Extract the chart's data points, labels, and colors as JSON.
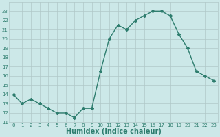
{
  "x": [
    0,
    1,
    2,
    3,
    4,
    5,
    6,
    7,
    8,
    9,
    10,
    11,
    12,
    13,
    14,
    15,
    16,
    17,
    18,
    19,
    20,
    21,
    22,
    23
  ],
  "y": [
    14,
    13,
    13.5,
    13,
    12.5,
    12,
    12,
    11.5,
    12.5,
    12.5,
    16.5,
    20,
    21.5,
    21,
    22,
    22.5,
    23,
    23,
    22.5,
    20.5,
    19,
    16.5,
    16,
    15.5
  ],
  "line_color": "#2e7d6e",
  "marker": "D",
  "marker_size": 2,
  "bg_color": "#cce8e8",
  "grid_color": "#b0c8c8",
  "xlabel": "Humidex (Indice chaleur)",
  "xlabel_fontsize": 7,
  "tick_label_color": "#2e7d6e",
  "ylim": [
    11,
    24
  ],
  "xlim": [
    -0.5,
    23.5
  ],
  "yticks": [
    11,
    12,
    13,
    14,
    15,
    16,
    17,
    18,
    19,
    20,
    21,
    22,
    23
  ],
  "xticks": [
    0,
    1,
    2,
    3,
    4,
    5,
    6,
    7,
    8,
    9,
    10,
    11,
    12,
    13,
    14,
    15,
    16,
    17,
    18,
    19,
    20,
    21,
    22,
    23
  ]
}
